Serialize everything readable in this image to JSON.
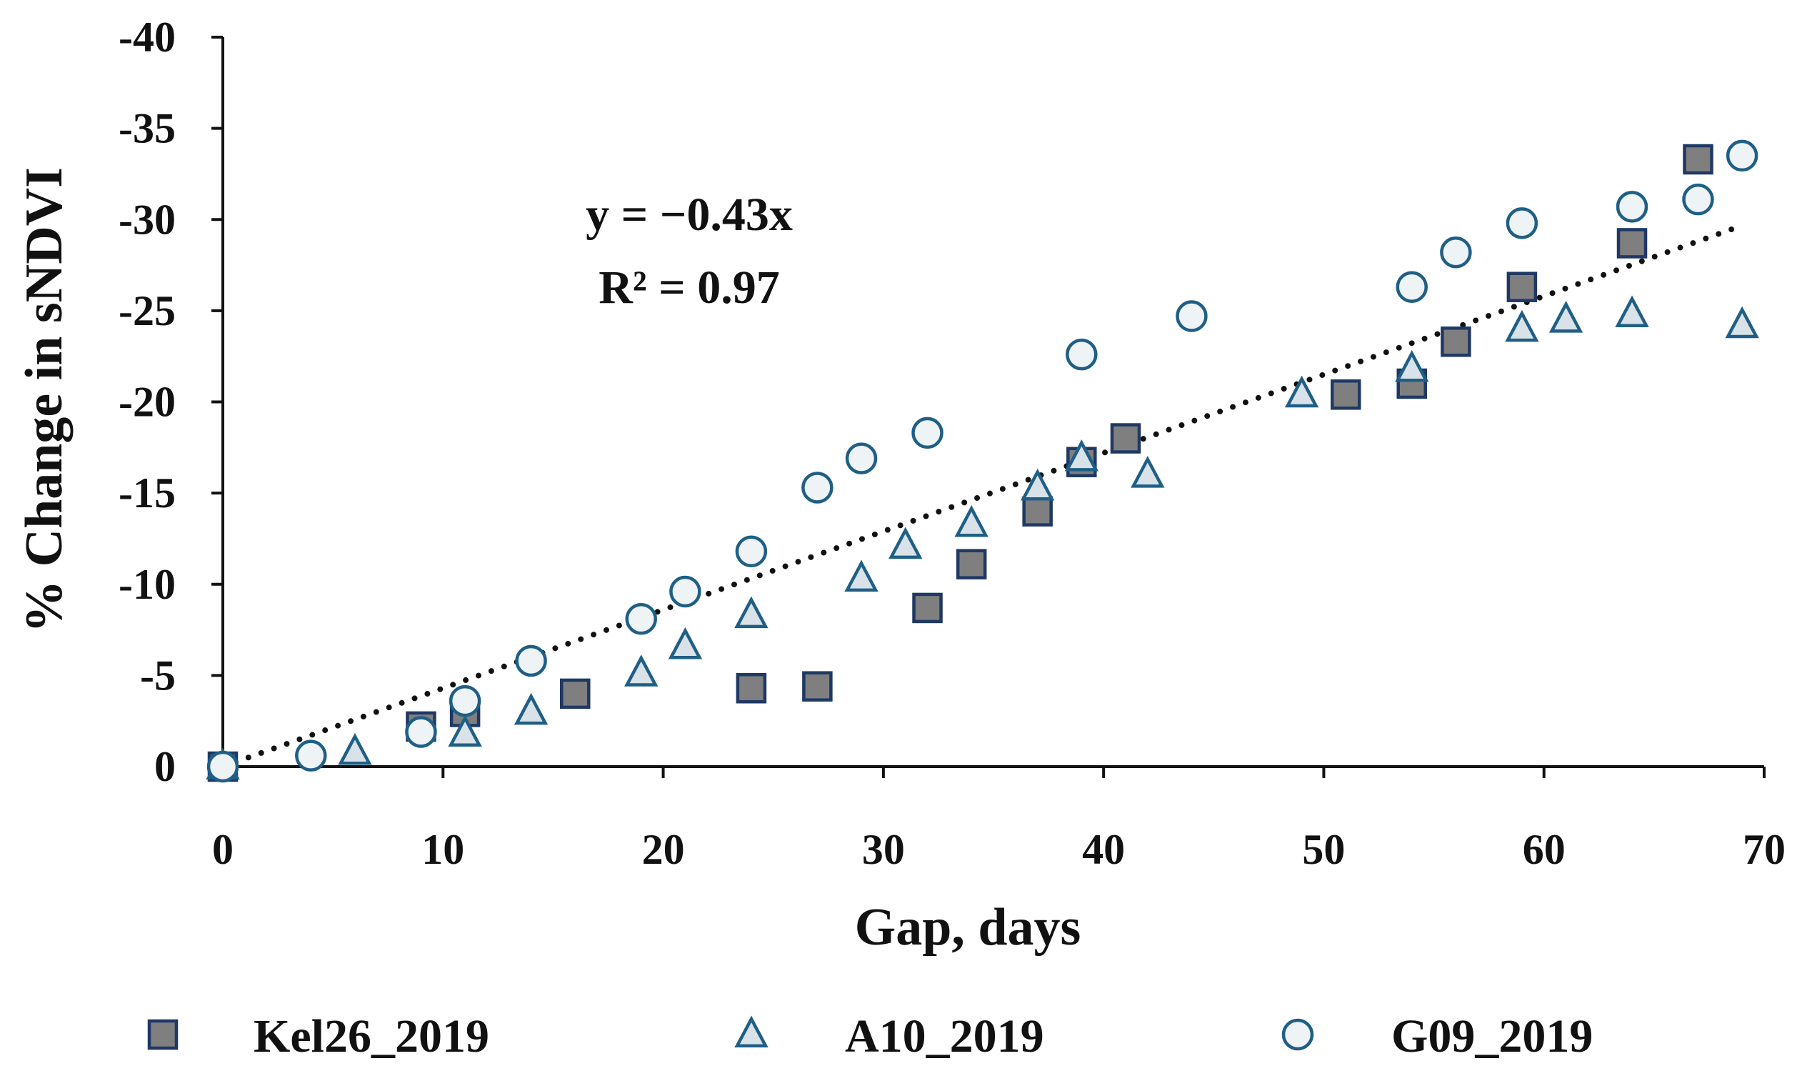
{
  "chart_data": {
    "type": "scatter",
    "title": "",
    "xlabel": "Gap, days",
    "ylabel": "% Change in sNDVI",
    "xlim": [
      0,
      70
    ],
    "ylim": [
      0,
      -40
    ],
    "x_ticks": [
      0,
      10,
      20,
      30,
      40,
      50,
      60,
      70
    ],
    "y_ticks": [
      0,
      -5,
      -10,
      -15,
      -20,
      -25,
      -30,
      -35,
      -40
    ],
    "x_tick_labels": [
      "0",
      "10",
      "20",
      "30",
      "40",
      "50",
      "60",
      "70"
    ],
    "y_tick_labels": [
      "0",
      "-5",
      "-10",
      "-15",
      "-20",
      "-25",
      "-30",
      "-35",
      "-40"
    ],
    "grid": false,
    "legend_position": "bottom",
    "trendline": {
      "style": "dotted",
      "color": "#111111",
      "slope": -0.43,
      "x_range": [
        0,
        69
      ],
      "equation": "y = −0.43x",
      "r_squared": "R² = 0.97"
    },
    "series": [
      {
        "name": "Kel26_2019",
        "marker": "square",
        "fill": "#7f7f7f",
        "stroke": "#1f3864",
        "points": [
          [
            0,
            0
          ],
          [
            9,
            -2.2
          ],
          [
            11,
            -3
          ],
          [
            16,
            -4
          ],
          [
            24,
            -4.3
          ],
          [
            27,
            -4.4
          ],
          [
            32,
            -8.7
          ],
          [
            34,
            -11.1
          ],
          [
            37,
            -14
          ],
          [
            39,
            -16.7
          ],
          [
            41,
            -18
          ],
          [
            51,
            -20.4
          ],
          [
            54,
            -21
          ],
          [
            56,
            -23.3
          ],
          [
            59,
            -26.3
          ],
          [
            64,
            -28.7
          ],
          [
            67,
            -33.3
          ]
        ]
      },
      {
        "name": "A10_2019",
        "marker": "triangle",
        "fill": "#d9e2e8",
        "stroke": "#1f5f86",
        "points": [
          [
            0,
            0
          ],
          [
            6,
            -0.8
          ],
          [
            11,
            -1.8
          ],
          [
            14,
            -3
          ],
          [
            19,
            -5.1
          ],
          [
            21,
            -6.6
          ],
          [
            24,
            -8.3
          ],
          [
            29,
            -10.3
          ],
          [
            31,
            -12.1
          ],
          [
            34,
            -13.3
          ],
          [
            37,
            -15.3
          ],
          [
            39,
            -16.9
          ],
          [
            42,
            -16
          ],
          [
            49,
            -20.4
          ],
          [
            54,
            -21.8
          ],
          [
            59,
            -24
          ],
          [
            61,
            -24.5
          ],
          [
            64,
            -24.8
          ],
          [
            69,
            -24.2
          ]
        ]
      },
      {
        "name": "G09_2019",
        "marker": "circle",
        "fill": "#eef3f6",
        "stroke": "#1f5f86",
        "points": [
          [
            0,
            0
          ],
          [
            4,
            -0.6
          ],
          [
            9,
            -1.9
          ],
          [
            11,
            -3.6
          ],
          [
            14,
            -5.8
          ],
          [
            19,
            -8.1
          ],
          [
            21,
            -9.6
          ],
          [
            24,
            -11.8
          ],
          [
            27,
            -15.3
          ],
          [
            29,
            -16.9
          ],
          [
            32,
            -18.3
          ],
          [
            39,
            -22.6
          ],
          [
            44,
            -24.7
          ],
          [
            54,
            -26.3
          ],
          [
            56,
            -28.2
          ],
          [
            59,
            -29.8
          ],
          [
            64,
            -30.7
          ],
          [
            67,
            -31.1
          ],
          [
            69,
            -33.5
          ]
        ]
      }
    ]
  }
}
